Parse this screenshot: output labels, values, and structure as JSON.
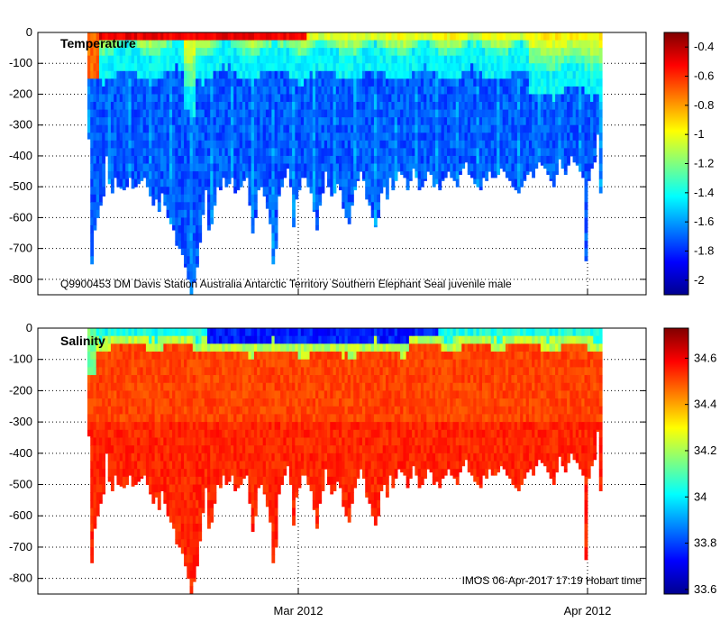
{
  "chart_data": [
    {
      "type": "heatmap",
      "title": "Temperature",
      "variable": "temperature",
      "annotation": "Q9900453 DM Davis Station Australia Antarctic Territory Southern Elephant Seal juvenile male",
      "ylabel": "",
      "ylim": [
        -850,
        0
      ],
      "yticks": [
        0,
        -100,
        -200,
        -300,
        -400,
        -500,
        -600,
        -700,
        -800
      ],
      "ytick_labels": [
        "0",
        "-100",
        "-200",
        "-300",
        "-400",
        "-500",
        "-600",
        "-700",
        "-800"
      ],
      "colorbar": {
        "range": [
          -2.1,
          -0.3
        ],
        "ticks": [
          -0.4,
          -0.6,
          -0.8,
          -1,
          -1.2,
          -1.4,
          -1.6,
          -1.8,
          -2
        ],
        "tick_labels": [
          "-0.4",
          "-0.6",
          "-0.8",
          "-1",
          "-1.2",
          "-1.4",
          "-1.6",
          "-1.8",
          "-2"
        ]
      },
      "grid": true
    },
    {
      "type": "heatmap",
      "title": "Salinity",
      "variable": "salinity",
      "annotation": "IMOS 06-Apr-2017 17:19 Hobart time",
      "ylabel": "",
      "ylim": [
        -850,
        0
      ],
      "yticks": [
        0,
        -100,
        -200,
        -300,
        -400,
        -500,
        -600,
        -700,
        -800
      ],
      "ytick_labels": [
        "0",
        "-100",
        "-200",
        "-300",
        "-400",
        "-500",
        "-600",
        "-700",
        "-800"
      ],
      "xticks": [
        "Mar 2012",
        "Apr 2012"
      ],
      "colorbar": {
        "range": [
          33.58,
          34.73
        ],
        "ticks": [
          34.6,
          34.4,
          34.2,
          34,
          33.8,
          33.6
        ],
        "tick_labels": [
          "34.6",
          "34.4",
          "34.2",
          "34",
          "33.8",
          "33.6"
        ]
      },
      "grid": true
    }
  ],
  "profiles": {
    "max_depth": [
      345,
      750,
      640,
      600,
      560,
      530,
      400,
      490,
      520,
      470,
      500,
      505,
      510,
      500,
      470,
      505,
      500,
      490,
      480,
      470,
      500,
      530,
      560,
      540,
      580,
      520,
      560,
      600,
      620,
      640,
      690,
      700,
      720,
      760,
      800,
      850,
      810,
      760,
      680,
      590,
      510,
      640,
      620,
      560,
      500,
      510,
      470,
      500,
      490,
      470,
      520,
      510,
      500,
      480,
      470,
      560,
      650,
      600,
      510,
      500,
      530,
      570,
      620,
      750,
      700,
      530,
      500,
      470,
      440,
      500,
      630,
      540,
      510,
      470,
      470,
      500,
      520,
      580,
      640,
      560,
      520,
      450,
      500,
      530,
      520,
      490,
      510,
      570,
      600,
      620,
      560,
      510,
      480,
      450,
      480,
      540,
      560,
      600,
      630,
      600,
      520,
      500,
      540,
      470,
      510,
      480,
      450,
      460,
      470,
      510,
      480,
      440,
      470,
      510,
      500,
      480,
      450,
      460,
      500,
      490,
      510,
      480,
      470,
      450,
      470,
      480,
      500,
      460,
      440,
      420,
      460,
      470,
      490,
      500,
      510,
      470,
      480,
      450,
      470,
      470,
      460,
      440,
      450,
      470,
      480,
      500,
      510,
      520,
      500,
      480,
      460,
      450,
      470,
      440,
      420,
      430,
      440,
      460,
      480,
      500,
      460,
      410,
      440,
      460,
      430,
      400,
      420,
      430,
      450,
      470,
      740,
      480,
      440,
      420,
      330,
      520
    ]
  }
}
